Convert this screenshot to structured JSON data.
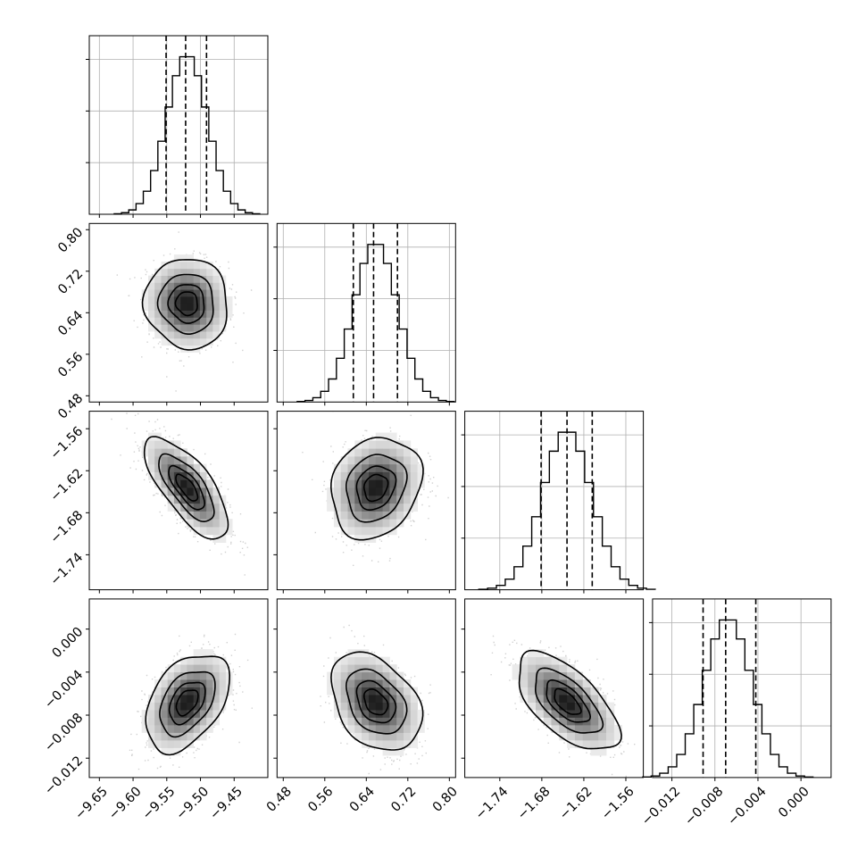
{
  "chart_data": {
    "type": "corner",
    "description_parameters": 4,
    "params": [
      {
        "mean": -9.52,
        "std": 0.03,
        "lim": [
          -9.665,
          -9.4
        ],
        "ticks": [
          -9.65,
          -9.6,
          -9.55,
          -9.5,
          -9.45
        ],
        "tick_labels": [
          "−9.65",
          "−9.60",
          "−9.55",
          "−9.50",
          "−9.45"
        ],
        "quantiles": [
          -9.551,
          -9.522,
          -9.491
        ]
      },
      {
        "mean": 0.658,
        "std": 0.042,
        "lim": [
          0.468,
          0.812
        ],
        "ticks": [
          0.48,
          0.56,
          0.64,
          0.72,
          0.8
        ],
        "tick_labels": [
          "0.48",
          "0.56",
          "0.64",
          "0.72",
          "0.80"
        ],
        "quantiles": [
          0.615,
          0.654,
          0.7
        ]
      },
      {
        "mean": -1.644,
        "std": 0.035,
        "lim": [
          -1.79,
          -1.535
        ],
        "ticks": [
          -1.74,
          -1.68,
          -1.62,
          -1.56
        ],
        "tick_labels": [
          "−1.74",
          "−1.68",
          "−1.62",
          "−1.56"
        ],
        "quantiles": [
          -1.681,
          -1.644,
          -1.608
        ]
      },
      {
        "mean": -0.0068,
        "std": 0.0022,
        "lim": [
          -0.0138,
          0.0028
        ],
        "ticks": [
          -0.012,
          -0.008,
          -0.004,
          0.0
        ],
        "tick_labels": [
          "−0.012",
          "−0.008",
          "−0.004",
          "0.000"
        ],
        "quantiles": [
          -0.0091,
          -0.007,
          -0.0042
        ]
      }
    ],
    "correlations": [
      {
        "i": 1,
        "j": 0,
        "rho": -0.05
      },
      {
        "i": 2,
        "j": 0,
        "rho": -0.72
      },
      {
        "i": 2,
        "j": 1,
        "rho": 0.18
      },
      {
        "i": 3,
        "j": 0,
        "rho": 0.42
      },
      {
        "i": 3,
        "j": 1,
        "rho": -0.35
      },
      {
        "i": 3,
        "j": 2,
        "rho": -0.62
      }
    ],
    "contour_levels_sigma": [
      0.5,
      1.0,
      1.5,
      2.0
    ],
    "histogram_bins": 20,
    "grid": true,
    "quantile_lines": "dashed"
  }
}
